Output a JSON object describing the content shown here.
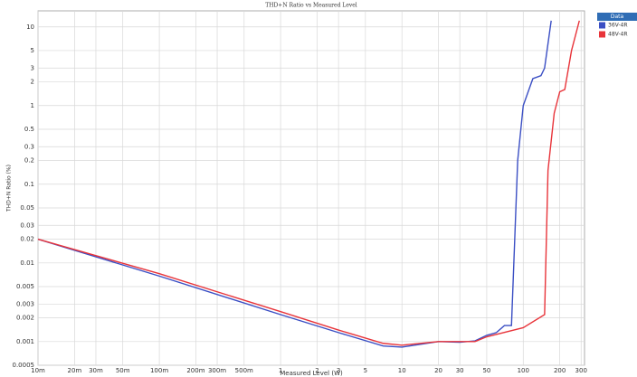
{
  "chart_data": {
    "type": "line",
    "title": "THD+N Ratio vs Measured Level",
    "x_label": "Measured Level (W)",
    "y_label": "THD+N Ratio (%)",
    "log_x": true,
    "log_y": true,
    "grid": true,
    "legend_title": "Data",
    "legend_position": "right",
    "xlim": [
      0.01,
      320
    ],
    "ylim": [
      0.0005,
      16
    ],
    "xticks": [
      {
        "value": 0.01,
        "label": "10m"
      },
      {
        "value": 0.02,
        "label": "20m"
      },
      {
        "value": 0.03,
        "label": "30m"
      },
      {
        "value": 0.05,
        "label": "50m"
      },
      {
        "value": 0.1,
        "label": "100m"
      },
      {
        "value": 0.2,
        "label": "200m"
      },
      {
        "value": 0.3,
        "label": "300m"
      },
      {
        "value": 0.5,
        "label": "500m"
      },
      1,
      2,
      3,
      5,
      10,
      20,
      30,
      50,
      100,
      200,
      300
    ],
    "yticks": [
      0.0005,
      0.001,
      0.002,
      0.003,
      0.005,
      0.01,
      0.02,
      0.03,
      0.05,
      0.1,
      0.2,
      0.3,
      0.5,
      1,
      2,
      3,
      5,
      10
    ],
    "series": [
      {
        "name": "36V-4R",
        "color": "#3b4fc4",
        "x": [
          0.01,
          0.1,
          1,
          3,
          7,
          10,
          20,
          30,
          40,
          50,
          60,
          70,
          80,
          90,
          100,
          120,
          140,
          150,
          170
        ],
        "values": [
          0.02,
          0.0068,
          0.0022,
          0.0013,
          0.00088,
          0.00085,
          0.001,
          0.00098,
          0.00102,
          0.0012,
          0.0013,
          0.0016,
          0.0016,
          0.2,
          1,
          2.2,
          2.4,
          3,
          12
        ]
      },
      {
        "name": "48V-4R",
        "color": "#e8343a",
        "x": [
          0.01,
          0.1,
          1,
          3,
          7,
          10,
          20,
          30,
          40,
          50,
          100,
          150,
          160,
          180,
          200,
          220,
          250,
          290
        ],
        "values": [
          0.02,
          0.0073,
          0.0024,
          0.0014,
          0.00095,
          0.0009,
          0.001,
          0.001,
          0.001,
          0.00115,
          0.0015,
          0.0022,
          0.15,
          0.8,
          1.5,
          1.6,
          5,
          12
        ]
      }
    ]
  }
}
